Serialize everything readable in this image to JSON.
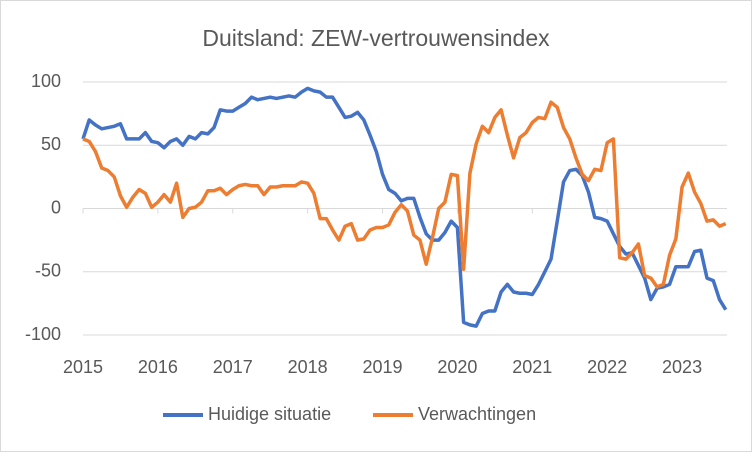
{
  "chart_data": {
    "type": "line",
    "title": "Duitsland: ZEW-vertrouwensindex",
    "x": [
      2015,
      2015.083,
      2015.167,
      2015.25,
      2015.333,
      2015.417,
      2015.5,
      2015.583,
      2015.667,
      2015.75,
      2015.833,
      2015.917,
      2016,
      2016.083,
      2016.167,
      2016.25,
      2016.333,
      2016.417,
      2016.5,
      2016.583,
      2016.667,
      2016.75,
      2016.833,
      2016.917,
      2017,
      2017.083,
      2017.167,
      2017.25,
      2017.333,
      2017.417,
      2017.5,
      2017.583,
      2017.667,
      2017.75,
      2017.833,
      2017.917,
      2018,
      2018.083,
      2018.167,
      2018.25,
      2018.333,
      2018.417,
      2018.5,
      2018.583,
      2018.667,
      2018.75,
      2018.833,
      2018.917,
      2019,
      2019.083,
      2019.167,
      2019.25,
      2019.333,
      2019.417,
      2019.5,
      2019.583,
      2019.667,
      2019.75,
      2019.833,
      2019.917,
      2020,
      2020.083,
      2020.167,
      2020.25,
      2020.333,
      2020.417,
      2020.5,
      2020.583,
      2020.667,
      2020.75,
      2020.833,
      2020.917,
      2021,
      2021.083,
      2021.167,
      2021.25,
      2021.333,
      2021.417,
      2021.5,
      2021.583,
      2021.667,
      2021.75,
      2021.833,
      2021.917,
      2022,
      2022.083,
      2022.167,
      2022.25,
      2022.333,
      2022.417,
      2022.5,
      2022.583,
      2022.667,
      2022.75,
      2022.833,
      2022.917,
      2023,
      2023.083,
      2023.167,
      2023.25,
      2023.333,
      2023.417,
      2023.5,
      2023.583
    ],
    "series": [
      {
        "name": "Huidige situatie",
        "color": "#4472c4",
        "values": [
          55,
          70,
          66,
          63,
          64,
          65,
          67,
          55,
          55,
          55,
          60,
          53,
          52,
          48,
          53,
          55,
          50,
          57,
          55,
          60,
          59,
          64,
          78,
          77,
          77,
          80,
          83,
          88,
          86,
          87,
          88,
          87,
          88,
          89,
          88,
          92,
          95,
          93,
          92,
          88,
          88,
          80,
          72,
          73,
          76,
          70,
          58,
          45,
          27,
          15,
          12,
          6,
          8,
          8,
          -7,
          -20,
          -25,
          -25,
          -19,
          -10,
          -15,
          -90,
          -92,
          -93,
          -83,
          -81,
          -81,
          -66,
          -60,
          -66,
          -67,
          -67,
          -68,
          -60,
          -50,
          -40,
          -10,
          21,
          30,
          31,
          26,
          13,
          -7,
          -8,
          -10,
          -20,
          -30,
          -36,
          -35,
          -45,
          -55,
          -72,
          -63,
          -62,
          -60,
          -46,
          -46,
          -46,
          -34,
          -33,
          -55,
          -57,
          -72,
          -80
        ]
      },
      {
        "name": "Verwachtingen",
        "color": "#ed7d31",
        "values": [
          55,
          53,
          45,
          32,
          30,
          25,
          10,
          1,
          9,
          15,
          12,
          1,
          5,
          11,
          5,
          20,
          -7,
          0,
          1,
          5,
          14,
          14,
          16,
          11,
          15,
          18,
          19,
          18,
          18,
          11,
          17,
          17,
          18,
          18,
          18,
          21,
          20,
          12,
          -8,
          -8,
          -17,
          -25,
          -14,
          -12,
          -25,
          -24,
          -17,
          -15,
          -15,
          -13,
          -3,
          3,
          -2,
          -21,
          -25,
          -44,
          -23,
          0,
          5,
          27,
          26,
          -48,
          28,
          51,
          65,
          60,
          72,
          78,
          58,
          40,
          56,
          60,
          68,
          72,
          71,
          84,
          80,
          64,
          55,
          40,
          27,
          22,
          31,
          30,
          52,
          55,
          -39,
          -40,
          -35,
          -28,
          -53,
          -55,
          -62,
          -60,
          -37,
          -24,
          17,
          28,
          13,
          4,
          -10,
          -9,
          -14,
          -12
        ]
      }
    ],
    "xlim": [
      2015,
      2023.6
    ],
    "xticks": [
      2015,
      2016,
      2017,
      2018,
      2019,
      2020,
      2021,
      2022,
      2023
    ],
    "ylim": [
      -100,
      100
    ],
    "yticks": [
      -100,
      -50,
      0,
      50,
      100
    ],
    "grid": true
  }
}
